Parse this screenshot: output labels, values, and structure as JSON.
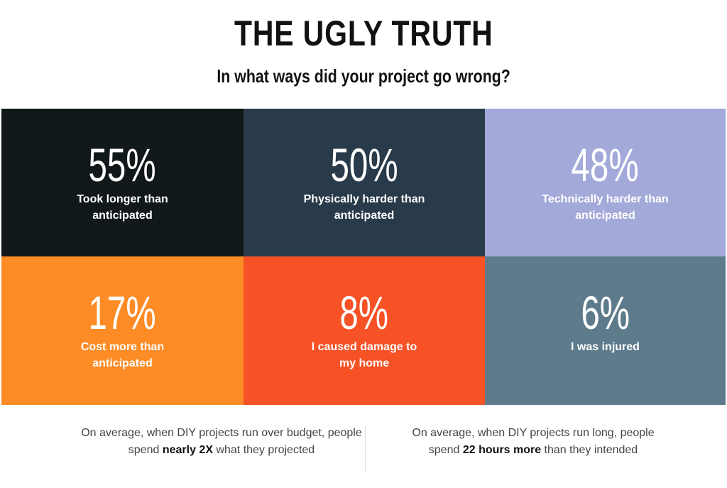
{
  "title": "THE UGLY TRUTH",
  "subtitle": "In what ways did your project go wrong?",
  "chart_data": {
    "type": "table",
    "title": "THE UGLY TRUTH",
    "subtitle": "In what ways did your project go wrong?",
    "categories": [
      "Took longer than anticipated",
      "Physically harder than anticipated",
      "Technically harder than anticipated",
      "Cost more than anticipated",
      "I caused damage to my home",
      "I was injured"
    ],
    "values": [
      55,
      50,
      48,
      17,
      8,
      6
    ],
    "labels": [
      "55%",
      "50%",
      "48%",
      "17%",
      "8%",
      "6%"
    ],
    "colors": [
      "#111819",
      "#293b4a",
      "#a3aad9",
      "#fd8c26",
      "#f65226",
      "#5e7b8c"
    ]
  },
  "footer": {
    "left": {
      "pre": "On average, when DIY projects run over budget, people spend ",
      "bold": "nearly 2X",
      "post": " what they projected"
    },
    "right": {
      "pre": "On average, when DIY projects run long, people spend ",
      "bold": "22 hours more",
      "post": " than they intended"
    }
  }
}
